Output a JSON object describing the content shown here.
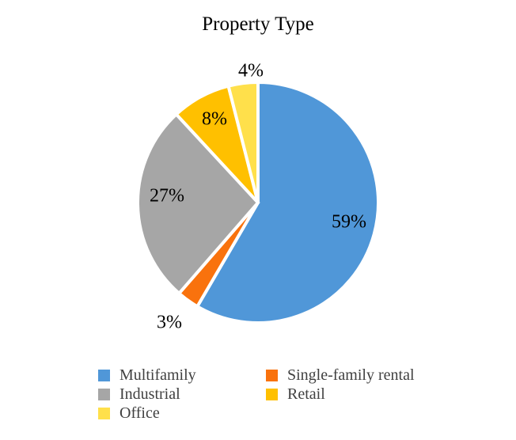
{
  "chart_data": {
    "type": "pie",
    "title": "Property Type",
    "slices": [
      {
        "name": "Multifamily",
        "value": 59,
        "label": "59%",
        "color": "#5097d8"
      },
      {
        "name": "Single-family rental",
        "value": 3,
        "label": "3%",
        "color": "#f9720d"
      },
      {
        "name": "Industrial",
        "value": 27,
        "label": "27%",
        "color": "#a6a6a6"
      },
      {
        "name": "Retail",
        "value": 8,
        "label": "8%",
        "color": "#ffc000"
      },
      {
        "name": "Office",
        "value": 4,
        "label": "4%",
        "color": "#ffe04b"
      }
    ],
    "legend": {
      "position": "bottom",
      "items": [
        {
          "name": "Multifamily",
          "color": "#5097d8"
        },
        {
          "name": "Single-family rental",
          "color": "#f9720d"
        },
        {
          "name": "Industrial",
          "color": "#a6a6a6"
        },
        {
          "name": "Retail",
          "color": "#ffc000"
        },
        {
          "name": "Office",
          "color": "#ffe04b"
        }
      ]
    }
  }
}
